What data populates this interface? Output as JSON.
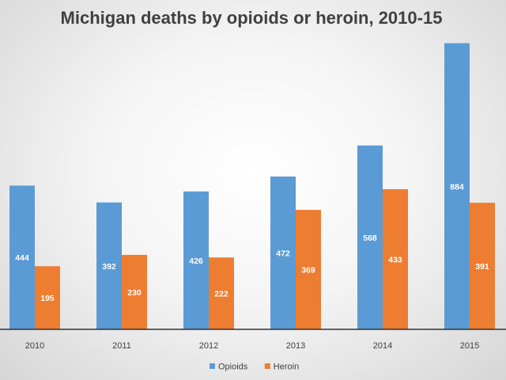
{
  "chart_data": {
    "type": "bar",
    "title": "Michigan deaths  by opioids or heroin, 2010-15",
    "xlabel": "",
    "ylabel": "",
    "categories": [
      "2010",
      "2011",
      "2012",
      "2013",
      "2014",
      "2015"
    ],
    "series": [
      {
        "name": "Opioids",
        "color": "#5b9bd5",
        "values": [
          444,
          392,
          426,
          472,
          568,
          884
        ]
      },
      {
        "name": "Heroin",
        "color": "#ed7d31",
        "values": [
          195,
          230,
          222,
          369,
          433,
          391
        ]
      }
    ],
    "ylim": [
      0,
      900
    ],
    "grid": false,
    "legend_position": "bottom",
    "axis_line_color": "#333333"
  }
}
